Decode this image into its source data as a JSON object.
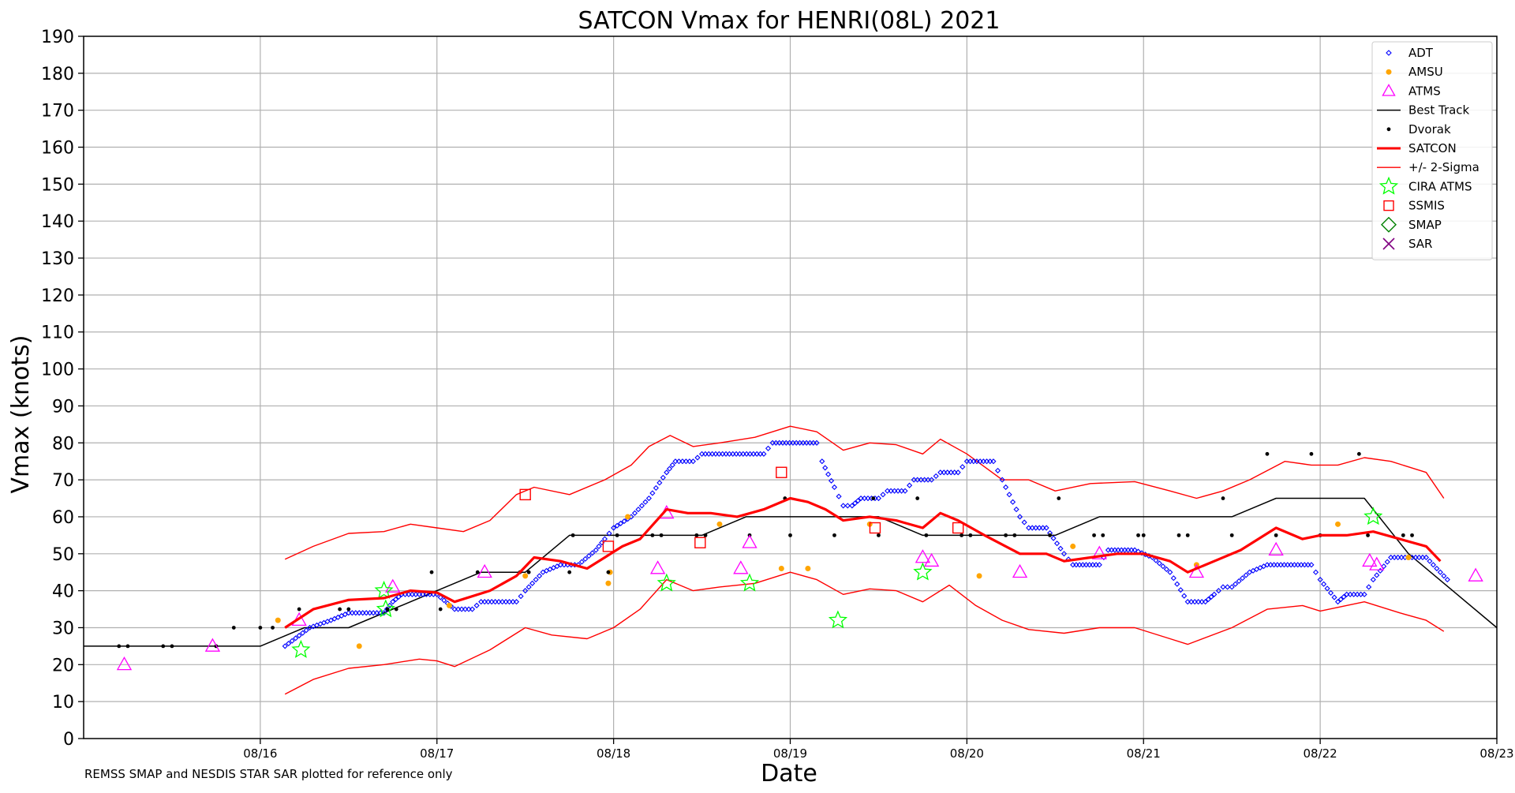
{
  "chart_data": {
    "type": "scatter",
    "title": "SATCON Vmax for HENRI(08L) 2021",
    "xlabel": "Date",
    "ylabel": "Vmax (knots)",
    "footnote": "REMSS SMAP and NESDIS STAR SAR plotted for reference only",
    "x_unit": "days since 08/15 00Z",
    "xlim": [
      0,
      8
    ],
    "ylim": [
      0,
      190
    ],
    "yticks": [
      0,
      10,
      20,
      30,
      40,
      50,
      60,
      70,
      80,
      90,
      100,
      110,
      120,
      130,
      140,
      150,
      160,
      170,
      180,
      190
    ],
    "xticks": [
      {
        "x": 1,
        "label": "08/16"
      },
      {
        "x": 2,
        "label": "08/17"
      },
      {
        "x": 3,
        "label": "08/18"
      },
      {
        "x": 4,
        "label": "08/19"
      },
      {
        "x": 5,
        "label": "08/20"
      },
      {
        "x": 6,
        "label": "08/21"
      },
      {
        "x": 7,
        "label": "08/22"
      },
      {
        "x": 8,
        "label": "08/23"
      }
    ],
    "grid": true,
    "legend_position": "top-right",
    "legend": [
      {
        "key": "adt",
        "label": "ADT"
      },
      {
        "key": "amsu",
        "label": "AMSU"
      },
      {
        "key": "atms",
        "label": "ATMS"
      },
      {
        "key": "besttrack",
        "label": "Best Track"
      },
      {
        "key": "dvorak",
        "label": "Dvorak"
      },
      {
        "key": "satcon",
        "label": "SATCON"
      },
      {
        "key": "sigma",
        "label": "+/- 2-Sigma"
      },
      {
        "key": "cira",
        "label": "CIRA ATMS"
      },
      {
        "key": "ssmis",
        "label": "SSMIS"
      },
      {
        "key": "smap",
        "label": "SMAP"
      },
      {
        "key": "sar",
        "label": "SAR"
      }
    ],
    "colors": {
      "adt": "#0000ff",
      "amsu": "#ffa500",
      "atms": "#ff00ff",
      "besttrack": "#000000",
      "dvorak": "#000000",
      "satcon": "#ff0000",
      "sigma": "#ff0000",
      "cira": "#00ff00",
      "ssmis": "#ff0000",
      "smap": "#008000",
      "sar": "#800080"
    },
    "best_track": [
      [
        0,
        25
      ],
      [
        1,
        25
      ],
      [
        1.25,
        30
      ],
      [
        1.5,
        30
      ],
      [
        2,
        40
      ],
      [
        2.25,
        45
      ],
      [
        2.5,
        45
      ],
      [
        2.75,
        55
      ],
      [
        3,
        55
      ],
      [
        3.5,
        55
      ],
      [
        3.75,
        60
      ],
      [
        4,
        60
      ],
      [
        4.5,
        60
      ],
      [
        4.75,
        55
      ],
      [
        5,
        55
      ],
      [
        5.5,
        55
      ],
      [
        5.75,
        60
      ],
      [
        6,
        60
      ],
      [
        6.5,
        60
      ],
      [
        6.75,
        65
      ],
      [
        7,
        65
      ],
      [
        7.25,
        65
      ],
      [
        7.5,
        50
      ],
      [
        7.75,
        40
      ],
      [
        8,
        30
      ]
    ],
    "satcon": [
      [
        1.14,
        30
      ],
      [
        1.3,
        35
      ],
      [
        1.5,
        37.5
      ],
      [
        1.7,
        38
      ],
      [
        1.85,
        40
      ],
      [
        2,
        39.5
      ],
      [
        2.1,
        37
      ],
      [
        2.3,
        40
      ],
      [
        2.45,
        44
      ],
      [
        2.55,
        49
      ],
      [
        2.7,
        48
      ],
      [
        2.85,
        46
      ],
      [
        2.95,
        49
      ],
      [
        3.05,
        52
      ],
      [
        3.15,
        54
      ],
      [
        3.3,
        62
      ],
      [
        3.42,
        61
      ],
      [
        3.55,
        61
      ],
      [
        3.7,
        60
      ],
      [
        3.85,
        62
      ],
      [
        4.0,
        65
      ],
      [
        4.1,
        64
      ],
      [
        4.2,
        62
      ],
      [
        4.3,
        59
      ],
      [
        4.45,
        60
      ],
      [
        4.6,
        59
      ],
      [
        4.75,
        57
      ],
      [
        4.85,
        61
      ],
      [
        4.95,
        59
      ],
      [
        5.1,
        55
      ],
      [
        5.3,
        50
      ],
      [
        5.45,
        50
      ],
      [
        5.55,
        48
      ],
      [
        5.7,
        49
      ],
      [
        5.85,
        50
      ],
      [
        6.0,
        50
      ],
      [
        6.15,
        48
      ],
      [
        6.25,
        45
      ],
      [
        6.4,
        48
      ],
      [
        6.55,
        51
      ],
      [
        6.75,
        57
      ],
      [
        6.9,
        54
      ],
      [
        7.0,
        55
      ],
      [
        7.15,
        55
      ],
      [
        7.3,
        56
      ],
      [
        7.45,
        54
      ],
      [
        7.6,
        52
      ],
      [
        7.68,
        48
      ]
    ],
    "sigma_upper": [
      [
        1.14,
        48.5
      ],
      [
        1.3,
        52
      ],
      [
        1.5,
        55.5
      ],
      [
        1.7,
        56
      ],
      [
        1.85,
        58
      ],
      [
        2,
        57
      ],
      [
        2.15,
        56
      ],
      [
        2.3,
        59
      ],
      [
        2.45,
        66
      ],
      [
        2.55,
        68
      ],
      [
        2.75,
        66
      ],
      [
        2.95,
        70
      ],
      [
        3.1,
        74
      ],
      [
        3.2,
        79
      ],
      [
        3.32,
        82
      ],
      [
        3.45,
        79
      ],
      [
        3.6,
        80
      ],
      [
        3.8,
        81.5
      ],
      [
        4.0,
        84.5
      ],
      [
        4.15,
        83
      ],
      [
        4.3,
        78
      ],
      [
        4.45,
        80
      ],
      [
        4.6,
        79.5
      ],
      [
        4.75,
        77
      ],
      [
        4.85,
        81
      ],
      [
        5.0,
        77
      ],
      [
        5.2,
        70
      ],
      [
        5.35,
        70
      ],
      [
        5.5,
        67
      ],
      [
        5.7,
        69
      ],
      [
        5.95,
        69.5
      ],
      [
        6.15,
        67
      ],
      [
        6.3,
        65
      ],
      [
        6.45,
        67
      ],
      [
        6.6,
        70
      ],
      [
        6.8,
        75
      ],
      [
        6.95,
        74
      ],
      [
        7.1,
        74
      ],
      [
        7.25,
        76
      ],
      [
        7.4,
        75
      ],
      [
        7.6,
        72
      ],
      [
        7.7,
        65
      ]
    ],
    "sigma_lower": [
      [
        1.14,
        12
      ],
      [
        1.3,
        16
      ],
      [
        1.5,
        19
      ],
      [
        1.7,
        20
      ],
      [
        1.9,
        21.5
      ],
      [
        2.0,
        21
      ],
      [
        2.1,
        19.5
      ],
      [
        2.3,
        24
      ],
      [
        2.5,
        30
      ],
      [
        2.65,
        28
      ],
      [
        2.85,
        27
      ],
      [
        3.0,
        30
      ],
      [
        3.15,
        35
      ],
      [
        3.3,
        43
      ],
      [
        3.45,
        40
      ],
      [
        3.6,
        41
      ],
      [
        3.8,
        42
      ],
      [
        4.0,
        45
      ],
      [
        4.15,
        43
      ],
      [
        4.3,
        39
      ],
      [
        4.45,
        40.5
      ],
      [
        4.6,
        40
      ],
      [
        4.75,
        37
      ],
      [
        4.9,
        41.5
      ],
      [
        5.05,
        36
      ],
      [
        5.2,
        32
      ],
      [
        5.35,
        29.5
      ],
      [
        5.55,
        28.5
      ],
      [
        5.75,
        30
      ],
      [
        5.95,
        30
      ],
      [
        6.15,
        27
      ],
      [
        6.25,
        25.5
      ],
      [
        6.5,
        30
      ],
      [
        6.7,
        35
      ],
      [
        6.9,
        36
      ],
      [
        7.0,
        34.5
      ],
      [
        7.25,
        37
      ],
      [
        7.45,
        34
      ],
      [
        7.6,
        32
      ],
      [
        7.7,
        29
      ]
    ],
    "adt_segments": [
      [
        1.14,
        25
      ],
      [
        1.28,
        30
      ],
      [
        1.4,
        32
      ],
      [
        1.5,
        34
      ],
      [
        1.7,
        34
      ],
      [
        1.75,
        37
      ],
      [
        1.8,
        39
      ],
      [
        2.0,
        39
      ],
      [
        2.1,
        35
      ],
      [
        2.2,
        35
      ],
      [
        2.25,
        37
      ],
      [
        2.45,
        37
      ],
      [
        2.5,
        40
      ],
      [
        2.6,
        45
      ],
      [
        2.7,
        47
      ],
      [
        2.8,
        47
      ],
      [
        2.9,
        51
      ],
      [
        2.95,
        54
      ],
      [
        3.0,
        57
      ],
      [
        3.1,
        60
      ],
      [
        3.2,
        65
      ],
      [
        3.3,
        72
      ],
      [
        3.35,
        75
      ],
      [
        3.45,
        75
      ],
      [
        3.5,
        77
      ],
      [
        3.85,
        77
      ],
      [
        3.9,
        80
      ],
      [
        4.15,
        80
      ],
      [
        4.18,
        75
      ],
      [
        4.25,
        68
      ],
      [
        4.3,
        63
      ],
      [
        4.35,
        63
      ],
      [
        4.4,
        65
      ],
      [
        4.5,
        65
      ],
      [
        4.55,
        67
      ],
      [
        4.65,
        67
      ],
      [
        4.7,
        70
      ],
      [
        4.8,
        70
      ],
      [
        4.85,
        72
      ],
      [
        4.95,
        72
      ],
      [
        5.0,
        75
      ],
      [
        5.15,
        75
      ],
      [
        5.2,
        70
      ],
      [
        5.3,
        60
      ],
      [
        5.35,
        57
      ],
      [
        5.45,
        57
      ],
      [
        5.55,
        50
      ],
      [
        5.6,
        47
      ],
      [
        5.75,
        47
      ],
      [
        5.8,
        51
      ],
      [
        5.95,
        51
      ],
      [
        6.05,
        49
      ],
      [
        6.15,
        45
      ],
      [
        6.25,
        37
      ],
      [
        6.35,
        37
      ],
      [
        6.4,
        39
      ],
      [
        6.45,
        41
      ],
      [
        6.5,
        41
      ],
      [
        6.6,
        45
      ],
      [
        6.7,
        47
      ],
      [
        6.95,
        47
      ],
      [
        7.0,
        43
      ],
      [
        7.1,
        37
      ],
      [
        7.15,
        39
      ],
      [
        7.25,
        39
      ],
      [
        7.3,
        43
      ],
      [
        7.4,
        49
      ],
      [
        7.6,
        49
      ],
      [
        7.68,
        45
      ],
      [
        7.72,
        43
      ]
    ],
    "amsu": [
      [
        1.1,
        32
      ],
      [
        1.56,
        25
      ],
      [
        2.07,
        36
      ],
      [
        2.5,
        44
      ],
      [
        2.97,
        42
      ],
      [
        2.98,
        45
      ],
      [
        3.08,
        60
      ],
      [
        3.6,
        58
      ],
      [
        3.95,
        46
      ],
      [
        4.1,
        46
      ],
      [
        4.45,
        58
      ],
      [
        5.07,
        44
      ],
      [
        5.6,
        52
      ],
      [
        6.3,
        47
      ],
      [
        7.1,
        58
      ],
      [
        7.5,
        49
      ]
    ],
    "atms": [
      [
        0.23,
        20
      ],
      [
        0.73,
        25
      ],
      [
        1.22,
        32
      ],
      [
        1.75,
        41
      ],
      [
        2.27,
        45
      ],
      [
        3.25,
        46
      ],
      [
        3.3,
        61
      ],
      [
        3.72,
        46
      ],
      [
        3.77,
        53
      ],
      [
        4.75,
        49
      ],
      [
        4.8,
        48
      ],
      [
        5.3,
        45
      ],
      [
        5.75,
        50
      ],
      [
        6.3,
        45
      ],
      [
        6.75,
        51
      ],
      [
        7.28,
        48
      ],
      [
        7.32,
        47
      ],
      [
        7.88,
        44
      ]
    ],
    "dvorak": [
      [
        0.2,
        25
      ],
      [
        0.25,
        25
      ],
      [
        0.45,
        25
      ],
      [
        0.5,
        25
      ],
      [
        0.75,
        25
      ],
      [
        0.85,
        30
      ],
      [
        1.0,
        30
      ],
      [
        1.07,
        30
      ],
      [
        1.22,
        35
      ],
      [
        1.45,
        35
      ],
      [
        1.5,
        35
      ],
      [
        1.72,
        35
      ],
      [
        1.77,
        35
      ],
      [
        1.97,
        45
      ],
      [
        2.02,
        35
      ],
      [
        2.23,
        45
      ],
      [
        2.47,
        45
      ],
      [
        2.52,
        45
      ],
      [
        2.75,
        45
      ],
      [
        2.77,
        55
      ],
      [
        2.97,
        45
      ],
      [
        3.02,
        55
      ],
      [
        3.22,
        55
      ],
      [
        3.27,
        55
      ],
      [
        3.47,
        55
      ],
      [
        3.52,
        55
      ],
      [
        3.77,
        55
      ],
      [
        3.97,
        65
      ],
      [
        4.0,
        55
      ],
      [
        4.25,
        55
      ],
      [
        4.47,
        65
      ],
      [
        4.5,
        55
      ],
      [
        4.72,
        65
      ],
      [
        4.77,
        55
      ],
      [
        4.97,
        55
      ],
      [
        5.02,
        55
      ],
      [
        5.22,
        55
      ],
      [
        5.27,
        55
      ],
      [
        5.47,
        55
      ],
      [
        5.52,
        65
      ],
      [
        5.72,
        55
      ],
      [
        5.77,
        55
      ],
      [
        5.97,
        55
      ],
      [
        6.0,
        55
      ],
      [
        6.2,
        55
      ],
      [
        6.25,
        55
      ],
      [
        6.45,
        65
      ],
      [
        6.5,
        55
      ],
      [
        6.7,
        77
      ],
      [
        6.75,
        55
      ],
      [
        6.95,
        77
      ],
      [
        7.0,
        55
      ],
      [
        7.22,
        77
      ],
      [
        7.27,
        55
      ],
      [
        7.47,
        55
      ],
      [
        7.52,
        55
      ]
    ],
    "cira": [
      [
        1.23,
        24
      ],
      [
        1.7,
        40
      ],
      [
        1.71,
        35
      ],
      [
        3.3,
        42
      ],
      [
        3.77,
        42
      ],
      [
        4.27,
        32
      ],
      [
        4.75,
        45
      ],
      [
        7.3,
        60
      ]
    ],
    "ssmis": [
      [
        2.5,
        66
      ],
      [
        2.97,
        52
      ],
      [
        3.49,
        53
      ],
      [
        3.95,
        72
      ],
      [
        4.48,
        57
      ],
      [
        4.95,
        57
      ]
    ]
  }
}
